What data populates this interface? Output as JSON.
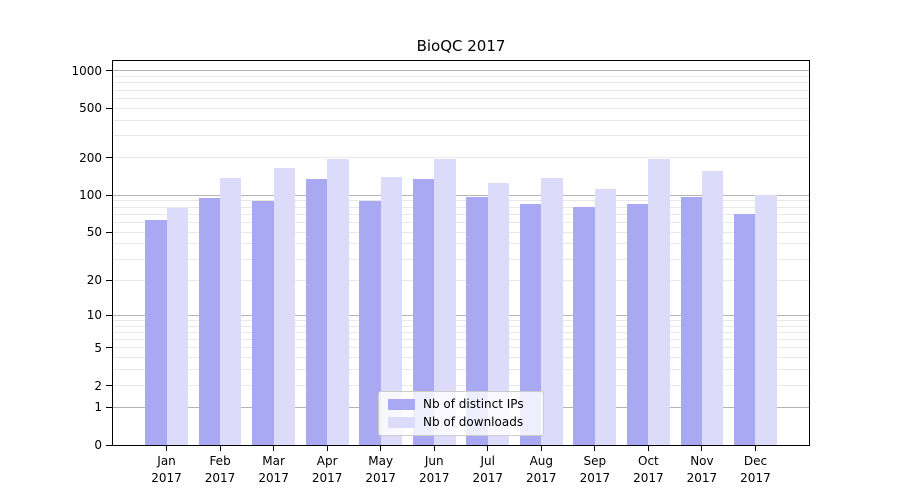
{
  "chart_data": {
    "type": "bar",
    "title": "BioQC 2017",
    "yscale": "log1p",
    "grid": "both",
    "legend_position": "lower center",
    "categories": [
      "Jan",
      "Feb",
      "Mar",
      "Apr",
      "May",
      "Jun",
      "Jul",
      "Aug",
      "Sep",
      "Oct",
      "Nov",
      "Dec"
    ],
    "x_year": "2017",
    "yticks": [
      0,
      1,
      2,
      5,
      10,
      20,
      50,
      100,
      200,
      500,
      1000
    ],
    "ylim": [
      0,
      1200
    ],
    "series": [
      {
        "name": "Nb of distinct IPs",
        "key": "distinct-ips",
        "color": "#a9a9f3",
        "values": [
          63,
          94,
          90,
          135,
          90,
          135,
          97,
          85,
          80,
          85,
          97,
          70
        ]
      },
      {
        "name": "Nb of downloads",
        "key": "downloads",
        "color": "#dcdcfa",
        "values": [
          78,
          138,
          166,
          197,
          141,
          197,
          125,
          138,
          113,
          194,
          157,
          100
        ]
      }
    ],
    "colors": {
      "grid_major": "#b3b3b3",
      "grid_minor": "#e8e8e8",
      "axis": "#000000"
    }
  }
}
